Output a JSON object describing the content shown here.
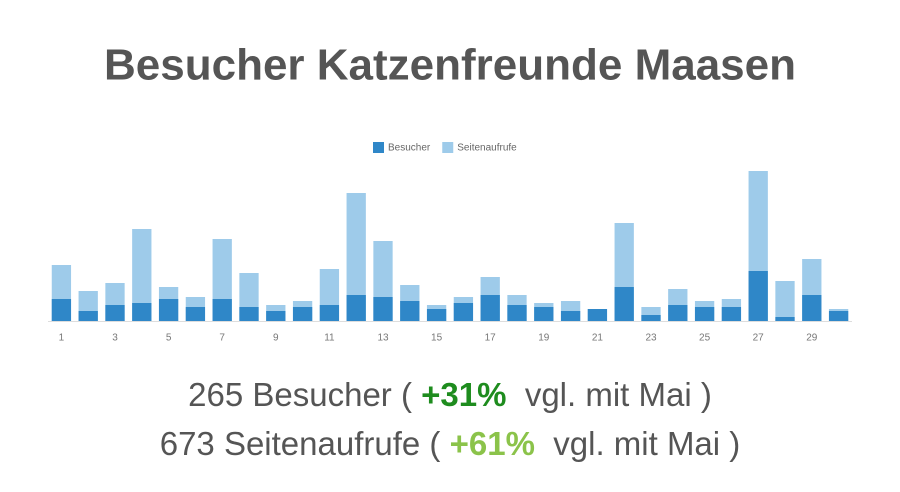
{
  "chart_data": {
    "type": "bar",
    "title": "Besucher Katzenfreunde Maasen",
    "categories": [
      "1",
      null,
      "3",
      null,
      "5",
      null,
      "7",
      null,
      "9",
      null,
      "11",
      null,
      "13",
      null,
      "15",
      null,
      "17",
      null,
      "19",
      null,
      "21",
      null,
      "23",
      null,
      "25",
      null,
      "27",
      null,
      "29",
      null
    ],
    "series": [
      {
        "name": "Besucher",
        "color": "#2f87c8",
        "values": [
          11,
          5,
          8,
          9,
          11,
          7,
          11,
          7,
          5,
          7,
          8,
          13,
          12,
          10,
          6,
          9,
          13,
          8,
          7,
          5,
          6,
          17,
          3,
          8,
          7,
          7,
          25,
          2,
          13,
          5
        ]
      },
      {
        "name": "Seitenaufrufe",
        "color": "#9ecbea",
        "values": [
          28,
          15,
          19,
          46,
          17,
          12,
          41,
          24,
          8,
          10,
          26,
          64,
          40,
          18,
          8,
          12,
          22,
          13,
          9,
          10,
          6,
          49,
          7,
          16,
          10,
          11,
          75,
          20,
          31,
          6
        ]
      }
    ],
    "legend": "top"
  },
  "summary": [
    {
      "lead": "265 Besucher (",
      "change": "+31%",
      "tail": "vgl. mit Mai )",
      "change_color": "#1e8c1e"
    },
    {
      "lead": "673 Seitenaufrufe (",
      "change": "+61%",
      "tail": "vgl. mit Mai )",
      "change_color": "#8bc34a"
    }
  ]
}
